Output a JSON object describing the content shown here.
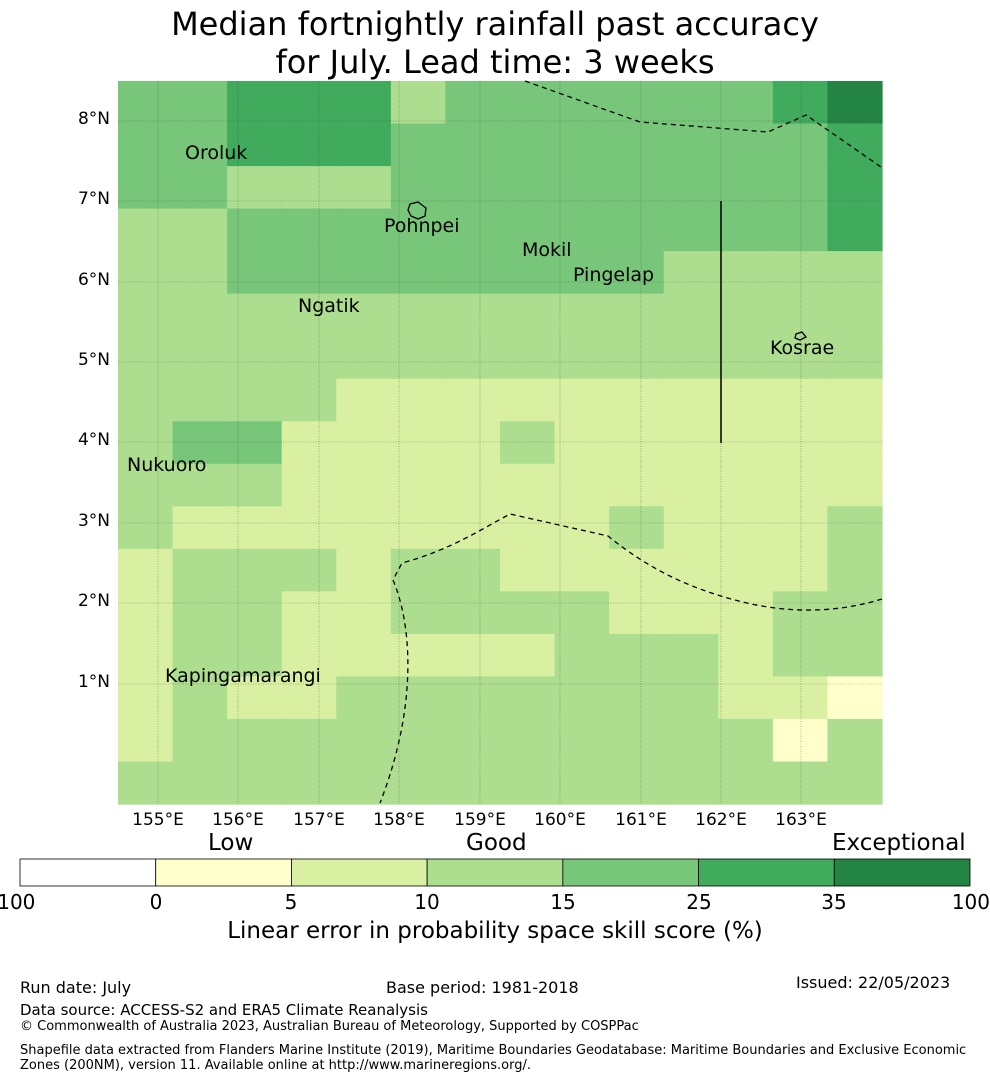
{
  "title": {
    "line1": "Median fortnightly rainfall past accuracy",
    "line2": "for July. Lead time: 3 weeks"
  },
  "map": {
    "lat_ticks": [
      "8°N",
      "7°N",
      "6°N",
      "5°N",
      "4°N",
      "3°N",
      "2°N",
      "1°N"
    ],
    "lon_ticks": [
      "155°E",
      "156°E",
      "157°E",
      "158°E",
      "159°E",
      "160°E",
      "161°E",
      "162°E",
      "163°E"
    ],
    "places": [
      "Oroluk",
      "Pohnpei",
      "Mokil",
      "Pingelap",
      "Ngatik",
      "Kosrae",
      "Nukuoro",
      "Kapingamarangi"
    ],
    "grid_skill_class": [
      [
        4,
        4,
        5,
        5,
        5,
        3,
        4,
        4,
        4,
        4,
        4,
        4,
        5,
        6
      ],
      [
        4,
        4,
        5,
        5,
        5,
        4,
        4,
        4,
        4,
        4,
        4,
        4,
        4,
        5
      ],
      [
        4,
        4,
        3,
        3,
        3,
        4,
        4,
        4,
        4,
        4,
        4,
        4,
        4,
        5
      ],
      [
        3,
        3,
        4,
        4,
        4,
        4,
        4,
        4,
        4,
        4,
        4,
        4,
        4,
        5
      ],
      [
        3,
        3,
        4,
        4,
        4,
        4,
        4,
        4,
        4,
        4,
        3,
        3,
        3,
        3
      ],
      [
        3,
        3,
        3,
        3,
        3,
        3,
        3,
        3,
        3,
        3,
        3,
        3,
        3,
        3
      ],
      [
        3,
        3,
        3,
        3,
        3,
        3,
        3,
        3,
        3,
        3,
        3,
        3,
        3,
        3
      ],
      [
        3,
        3,
        3,
        3,
        2,
        2,
        2,
        2,
        2,
        2,
        2,
        2,
        2,
        2
      ],
      [
        3,
        4,
        4,
        2,
        2,
        2,
        2,
        3,
        2,
        2,
        2,
        2,
        2,
        2
      ],
      [
        3,
        3,
        3,
        2,
        2,
        2,
        2,
        2,
        2,
        2,
        2,
        2,
        2,
        2
      ],
      [
        3,
        2,
        2,
        2,
        2,
        2,
        2,
        2,
        2,
        3,
        2,
        2,
        2,
        3
      ],
      [
        2,
        3,
        3,
        3,
        2,
        3,
        3,
        2,
        2,
        2,
        2,
        2,
        2,
        3
      ],
      [
        2,
        3,
        3,
        2,
        2,
        3,
        3,
        3,
        3,
        2,
        2,
        2,
        3,
        3
      ],
      [
        2,
        3,
        3,
        2,
        2,
        2,
        2,
        2,
        3,
        3,
        3,
        2,
        3,
        3
      ],
      [
        2,
        3,
        2,
        2,
        3,
        3,
        3,
        3,
        3,
        3,
        3,
        2,
        2,
        1
      ],
      [
        2,
        3,
        3,
        3,
        3,
        3,
        3,
        3,
        3,
        3,
        3,
        3,
        1,
        3
      ],
      [
        3,
        3,
        3,
        3,
        3,
        3,
        3,
        3,
        3,
        3,
        3,
        3,
        3,
        3
      ]
    ]
  },
  "colorbar": {
    "categories": [
      "Low",
      "Good",
      "Exceptional"
    ],
    "ticks": [
      "-100",
      "0",
      "5",
      "10",
      "15",
      "25",
      "35",
      "100"
    ],
    "colors": [
      "#ffffff",
      "#ffffcc",
      "#d9f0a3",
      "#addd8e",
      "#78c679",
      "#41ab5d",
      "#238443"
    ],
    "label": "Linear error in probability space skill score (%)"
  },
  "footer": {
    "run_date": "Run date: July",
    "base_period": "Base period: 1981-2018",
    "issued": "Issued: 22/05/2023",
    "data_source": "Data source: ACCESS-S2 and ERA5 Climate Reanalysis",
    "copyright": "© Commonwealth of Australia 2023, Australian Bureau of Meteorology, Supported by COSPPac",
    "shapefile": "Shapefile data extracted from Flanders Marine Institute (2019), Maritime Boundaries Geodatabase: Maritime Boundaries and Exclusive Economic Zones (200NM), version 11. Available online at http://www.marineregions.org/."
  }
}
